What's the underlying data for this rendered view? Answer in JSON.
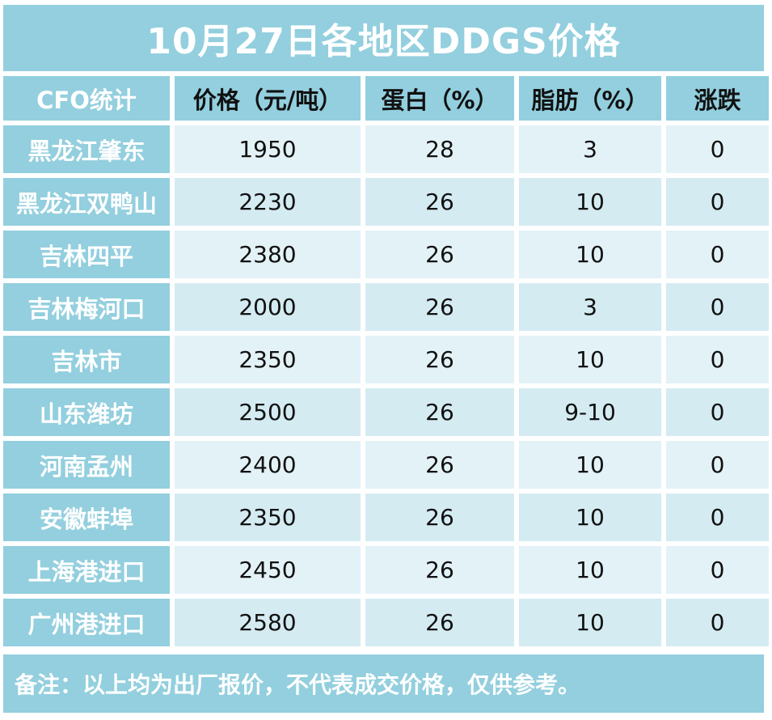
{
  "title": "10月27日各地区DDGS价格",
  "columns": [
    "CFO统计",
    "价格（元/吨）",
    "蛋白（%）",
    "脂肪（%）",
    "涨跌"
  ],
  "rows": [
    {
      "region": "黑龙江肇东",
      "price": "1950",
      "protein": "28",
      "fat": "3",
      "change": "0"
    },
    {
      "region": "黑龙江双鸭山",
      "price": "2230",
      "protein": "26",
      "fat": "10",
      "change": "0"
    },
    {
      "region": "吉林四平",
      "price": "2380",
      "protein": "26",
      "fat": "10",
      "change": "0"
    },
    {
      "region": "吉林梅河口",
      "price": "2000",
      "protein": "26",
      "fat": "3",
      "change": "0"
    },
    {
      "region": "吉林市",
      "price": "2350",
      "protein": "26",
      "fat": "10",
      "change": "0"
    },
    {
      "region": "山东潍坊",
      "price": "2500",
      "protein": "26",
      "fat": "9-10",
      "change": "0"
    },
    {
      "region": "河南孟州",
      "price": "2400",
      "protein": "26",
      "fat": "10",
      "change": "0"
    },
    {
      "region": "安徽蚌埠",
      "price": "2350",
      "protein": "26",
      "fat": "10",
      "change": "0"
    },
    {
      "region": "上海港进口",
      "price": "2450",
      "protein": "26",
      "fat": "10",
      "change": "0"
    },
    {
      "region": "广州港进口",
      "price": "2580",
      "protein": "26",
      "fat": "10",
      "change": "0"
    }
  ],
  "note": "备注：以上均为出厂报价，不代表成交价格，仅供参考。"
}
